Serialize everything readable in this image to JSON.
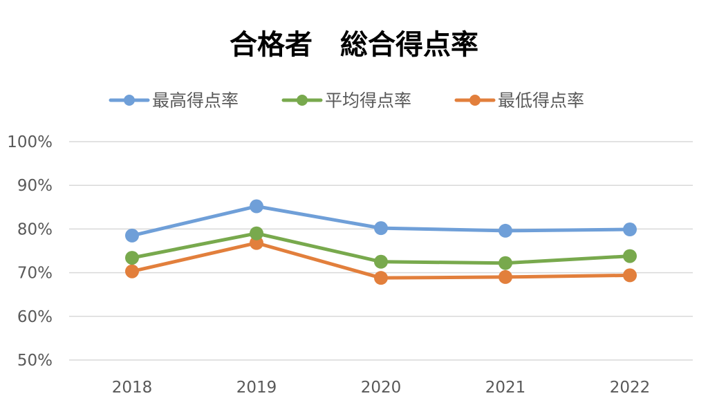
{
  "chart_data": {
    "type": "line",
    "title": "合格者　総合得点率",
    "xlabel": "",
    "ylabel": "",
    "categories": [
      "2018",
      "2019",
      "2020",
      "2021",
      "2022"
    ],
    "series": [
      {
        "name": "最高得点率",
        "color": "#6f9fd8",
        "values": [
          0.785,
          0.852,
          0.802,
          0.796,
          0.799
        ]
      },
      {
        "name": "平均得点率",
        "color": "#78a94d",
        "values": [
          0.734,
          0.79,
          0.725,
          0.722,
          0.738
        ]
      },
      {
        "name": "最低得点率",
        "color": "#e27f3c",
        "values": [
          0.703,
          0.768,
          0.688,
          0.69,
          0.694
        ]
      }
    ],
    "ylim": [
      0.5,
      1.0
    ],
    "yticks": [
      1.0,
      0.9,
      0.8,
      0.7,
      0.6,
      0.5
    ],
    "ytick_labels": [
      "100%",
      "90%",
      "80%",
      "70%",
      "60%",
      "50%"
    ],
    "grid": true,
    "legend_position": "top"
  }
}
